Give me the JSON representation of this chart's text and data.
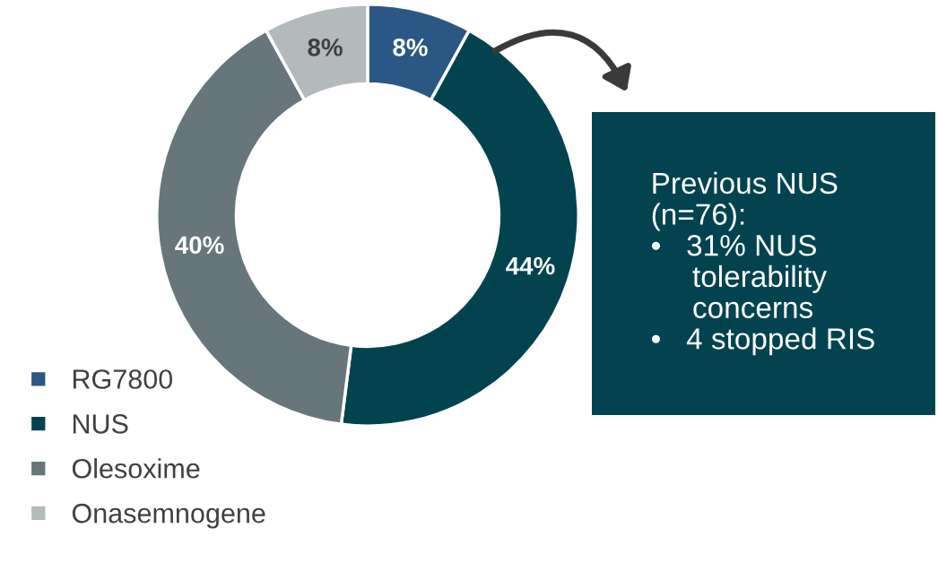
{
  "chart_data": {
    "type": "donut",
    "categories": [
      "RG7800",
      "NUS",
      "Olesoxime",
      "Onasemnogene"
    ],
    "values": [
      8,
      44,
      40,
      8
    ],
    "colors": [
      "#2a5783",
      "#02434f",
      "#67767a",
      "#b4b9bc"
    ],
    "value_labels": [
      "8%",
      "44%",
      "40%",
      "8%"
    ],
    "legend": "bottom left",
    "annotations": [
      "Previous NUS\n(n=76):\n•   31% NUS\n     tolerability\n     concerns\n•   4 stopped RIS"
    ]
  }
}
